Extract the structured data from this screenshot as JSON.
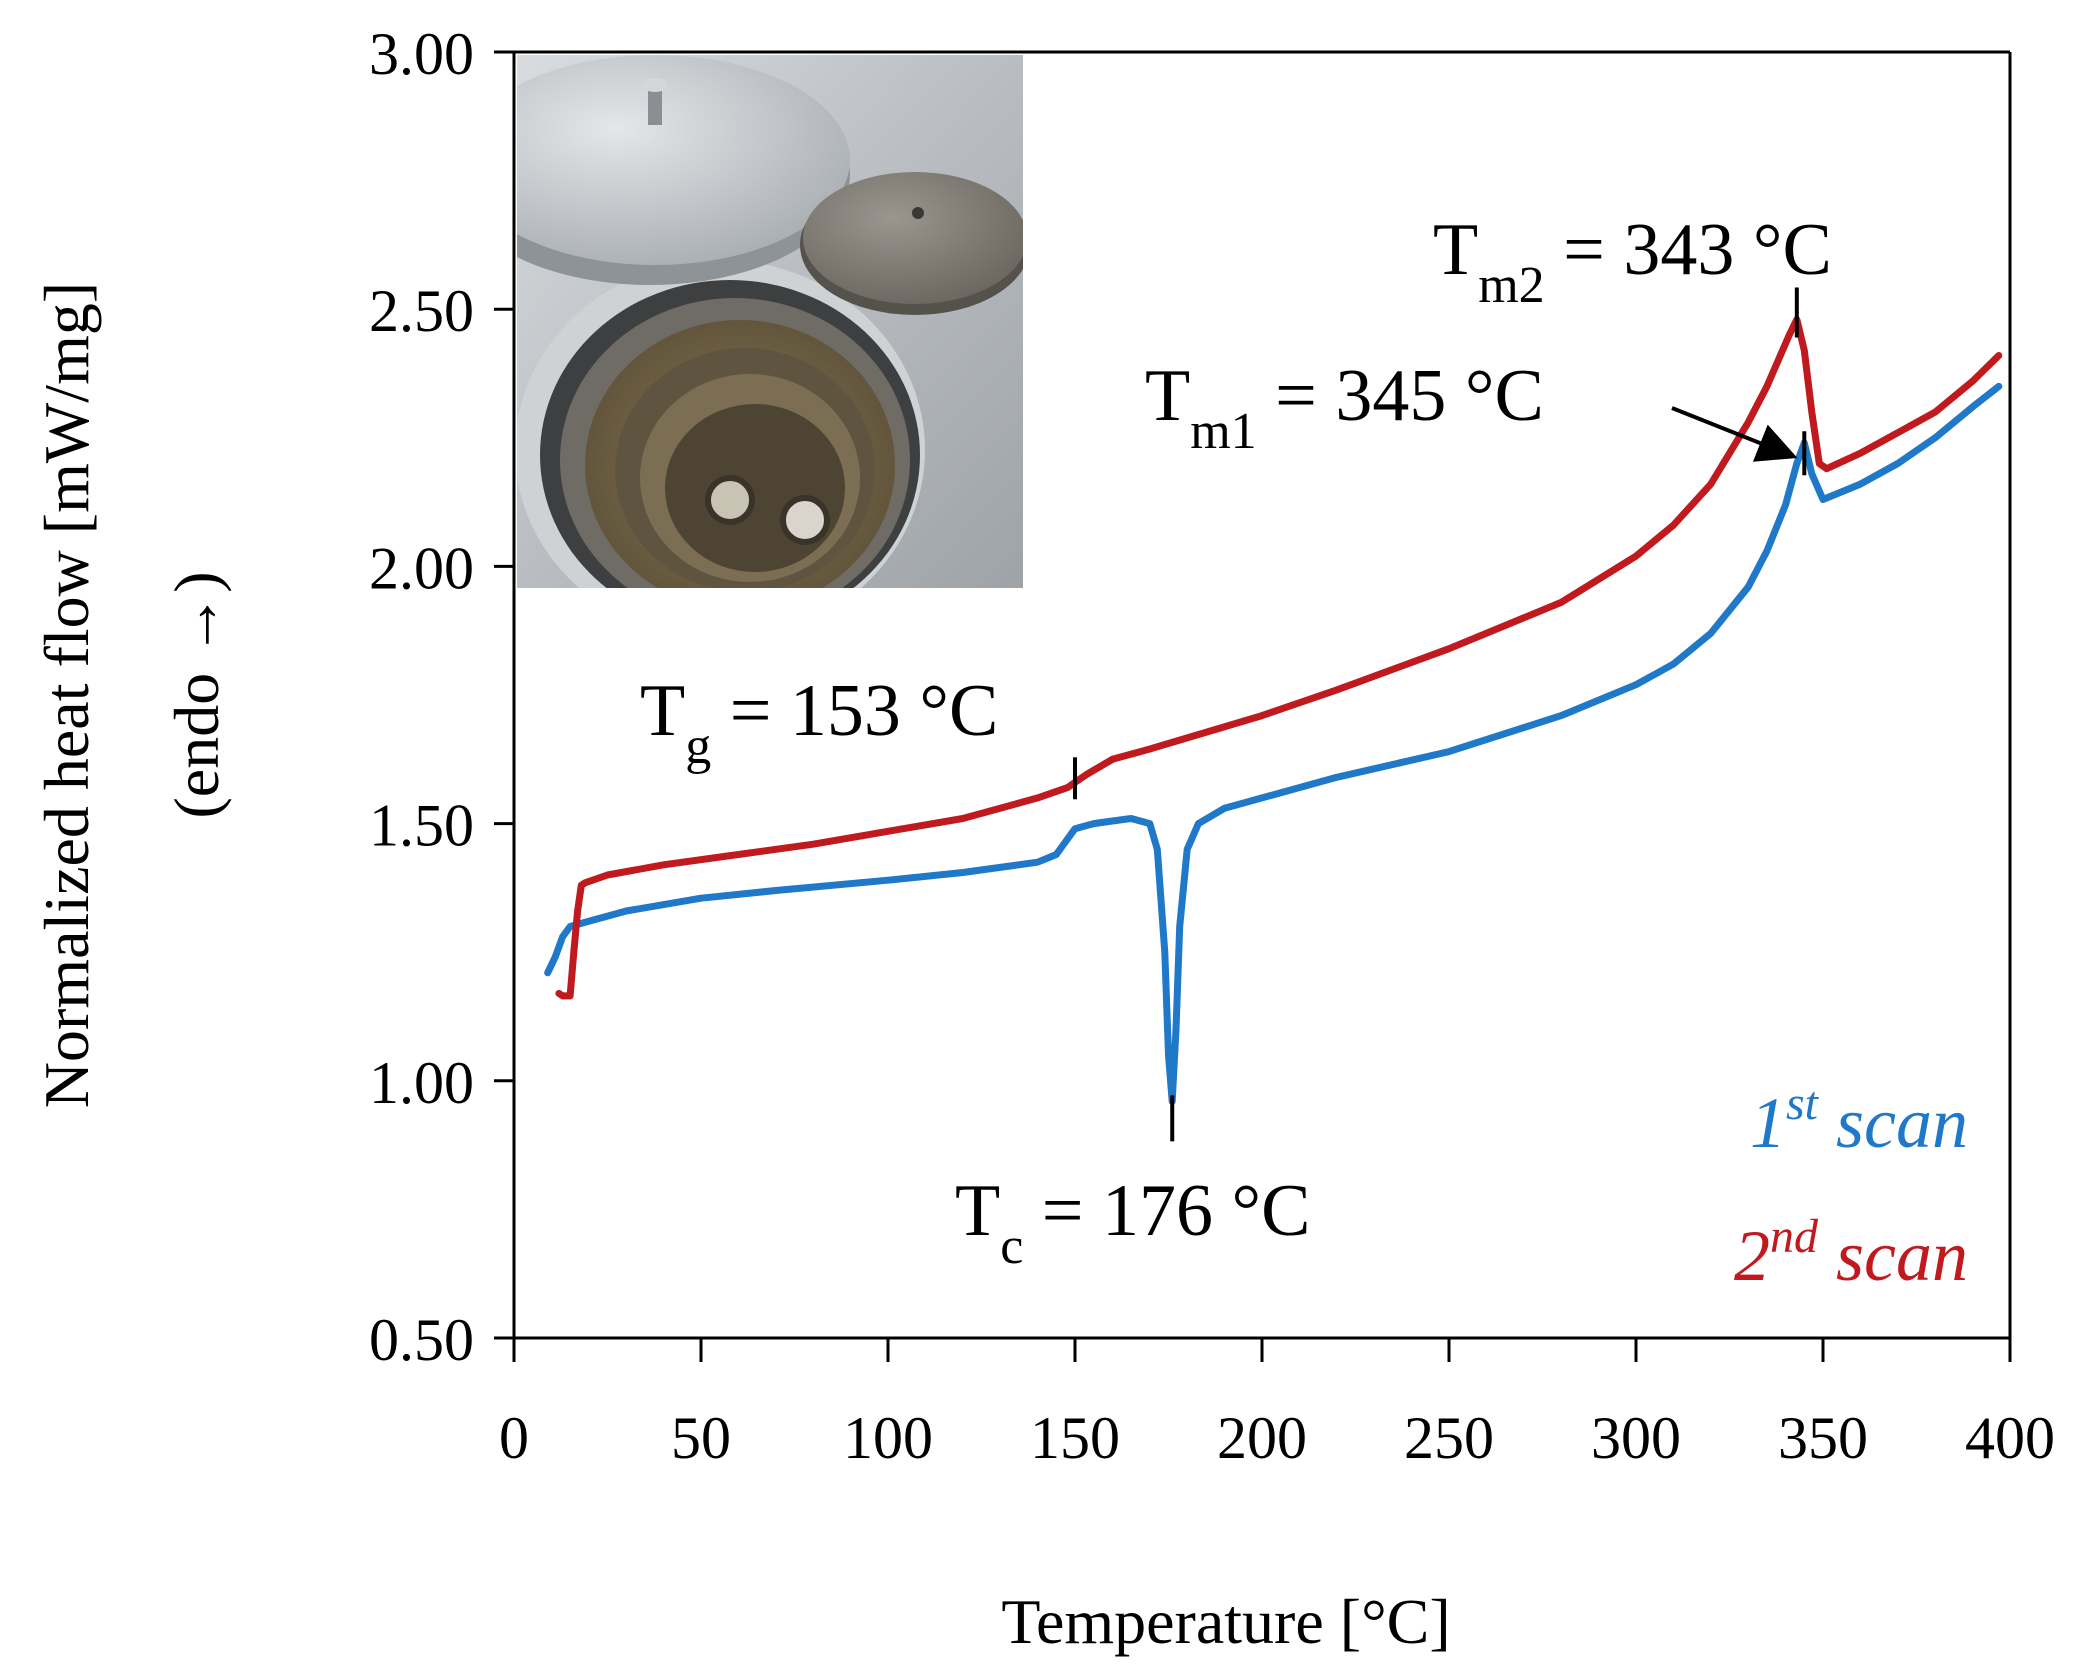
{
  "chart_data": {
    "type": "line",
    "title": "",
    "xlabel": "Temperature [°C]",
    "ylabel_line1": "Normalized heat flow [mW/mg]",
    "ylabel_line2": "(endo →)",
    "xlim": [
      0,
      400
    ],
    "ylim": [
      0.5,
      3.0
    ],
    "xticks": [
      0,
      50,
      100,
      150,
      200,
      250,
      300,
      350,
      400
    ],
    "xtick_labels": [
      "0",
      "50",
      "100",
      "150",
      "200",
      "250",
      "300",
      "350",
      "400"
    ],
    "yticks": [
      0.5,
      1.0,
      1.5,
      2.0,
      2.5,
      3.0
    ],
    "ytick_labels": [
      "0.50",
      "1.00",
      "1.50",
      "2.00",
      "2.50",
      "3.00"
    ],
    "grid": false,
    "legend_position": "bottom-right",
    "series": [
      {
        "name": "1st scan",
        "legend_base": "1",
        "legend_sup": "st",
        "legend_rest": " scan",
        "color": "#1f78c8",
        "x": [
          9,
          11,
          13,
          15,
          20,
          30,
          50,
          70,
          100,
          120,
          140,
          145,
          148,
          150,
          155,
          160,
          165,
          170,
          172,
          174,
          175,
          176,
          177,
          178,
          180,
          183,
          190,
          200,
          220,
          250,
          280,
          300,
          310,
          320,
          330,
          335,
          340,
          343,
          345,
          347,
          350,
          360,
          370,
          380,
          390,
          397
        ],
        "y": [
          1.21,
          1.24,
          1.28,
          1.3,
          1.31,
          1.33,
          1.355,
          1.37,
          1.39,
          1.405,
          1.425,
          1.44,
          1.47,
          1.49,
          1.5,
          1.505,
          1.51,
          1.5,
          1.45,
          1.25,
          1.05,
          0.96,
          1.1,
          1.3,
          1.45,
          1.5,
          1.53,
          1.55,
          1.59,
          1.64,
          1.71,
          1.77,
          1.81,
          1.87,
          1.96,
          2.03,
          2.12,
          2.2,
          2.24,
          2.18,
          2.13,
          2.16,
          2.2,
          2.25,
          2.31,
          2.35
        ]
      },
      {
        "name": "2nd scan",
        "legend_base": "2",
        "legend_sup": "nd",
        "legend_rest": " scan",
        "color": "#c0191e",
        "x": [
          12,
          13,
          15,
          16,
          17,
          18,
          19,
          25,
          40,
          60,
          80,
          100,
          120,
          140,
          148,
          150,
          153,
          160,
          170,
          200,
          220,
          250,
          280,
          300,
          310,
          320,
          330,
          335,
          338,
          341,
          343,
          345,
          347,
          349,
          351,
          360,
          370,
          380,
          390,
          397
        ],
        "y": [
          1.17,
          1.165,
          1.165,
          1.25,
          1.33,
          1.38,
          1.385,
          1.4,
          1.42,
          1.44,
          1.46,
          1.485,
          1.51,
          1.55,
          1.57,
          1.58,
          1.595,
          1.625,
          1.645,
          1.71,
          1.76,
          1.84,
          1.93,
          2.02,
          2.08,
          2.16,
          2.28,
          2.35,
          2.4,
          2.45,
          2.48,
          2.42,
          2.3,
          2.2,
          2.19,
          2.22,
          2.26,
          2.3,
          2.36,
          2.41
        ]
      }
    ],
    "annotations": [
      {
        "id": "tg",
        "base": "T",
        "sub": "g",
        "rest": " = 153 °C",
        "x": 150,
        "y": 1.59
      },
      {
        "id": "tc",
        "base": "T",
        "sub": "c",
        "rest": " = 176 °C",
        "x": 176,
        "y": 0.96
      },
      {
        "id": "tm1",
        "base": "T",
        "sub": "m1",
        "rest": " = 345 °C",
        "x": 345,
        "y": 2.22
      },
      {
        "id": "tm2",
        "base": "T",
        "sub": "m2",
        "rest": " = 343 °C",
        "x": 343,
        "y": 2.48
      }
    ],
    "inset_photo": "photo of DSC measuring cell with lids and sample crucibles"
  }
}
